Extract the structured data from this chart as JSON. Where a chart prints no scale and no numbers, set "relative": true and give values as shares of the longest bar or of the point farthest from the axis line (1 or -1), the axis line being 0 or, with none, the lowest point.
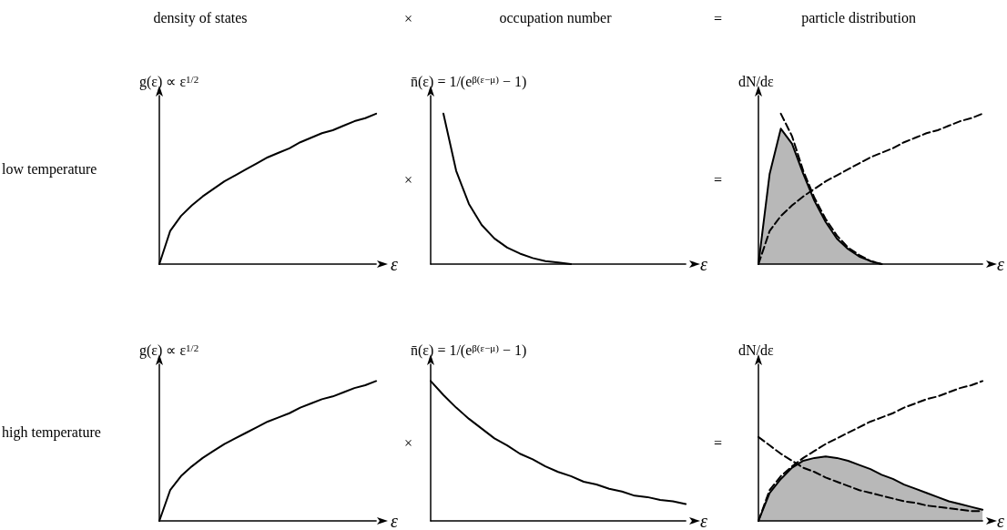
{
  "chart_data": [
    {
      "type": "line",
      "title": "density of states",
      "ylabel": "g(ε) ∝ ε$^{1/2}$",
      "xlabel": "ε",
      "annotations": [
        "low temperature"
      ],
      "relative": true,
      "marker": "none",
      "categories": [
        null,
        null,
        null,
        null,
        null,
        null,
        null,
        null,
        null,
        null,
        null,
        null,
        null,
        null,
        null,
        null,
        null,
        null,
        null,
        null,
        null
      ],
      "series": [
        {
          "color": "#000000",
          "values": [
            0,
            0.22,
            0.32,
            0.39,
            0.45,
            0.5,
            0.55,
            0.59,
            0.63,
            0.67,
            0.71,
            0.74,
            0.77,
            0.81,
            0.84,
            0.87,
            0.89,
            0.92,
            0.95,
            0.97,
            1
          ]
        }
      ]
    },
    {
      "type": "line",
      "title": "occupation number",
      "ylabel": "n̄(ε) = 1/(e$^{β(ε−μ)}$ − 1)",
      "xlabel": "ε",
      "annotations": [
        "×",
        "×"
      ],
      "relative": true,
      "marker": "none",
      "categories": [
        null,
        null,
        null,
        null,
        null,
        null,
        null,
        null,
        null,
        null,
        null,
        null,
        null,
        null,
        null,
        null,
        null,
        null,
        null,
        null,
        null
      ],
      "series": [
        {
          "color": "#000000",
          "values": [
            null,
            1,
            0.62,
            0.4,
            0.26,
            0.17,
            0.11,
            0.07,
            0.04,
            0.02,
            0.01,
            0,
            null,
            null,
            null,
            null,
            null,
            null,
            null,
            null,
            null
          ]
        }
      ]
    },
    {
      "type": "line",
      "title": "particle distribution",
      "ylabel": "dN/dε",
      "xlabel": "ε",
      "annotations": [
        "=",
        "="
      ],
      "relative": true,
      "marker": "none",
      "categories": [
        null,
        null,
        null,
        null,
        null,
        null,
        null,
        null,
        null,
        null,
        null,
        null,
        null,
        null,
        null,
        null,
        null,
        null,
        null,
        null,
        null
      ],
      "series": [
        {
          "type": "area",
          "color": "#000000",
          "line_style": "solid",
          "values": [
            0,
            0.6,
            0.9,
            0.8,
            0.6,
            0.42,
            0.28,
            0.17,
            0.1,
            0.05,
            0.02,
            0,
            null,
            null,
            null,
            null,
            null,
            null,
            null,
            null,
            null
          ]
        },
        {
          "color": "#000000",
          "line_style": "dashed",
          "values": [
            0,
            0.22,
            0.32,
            0.39,
            0.45,
            0.5,
            0.55,
            0.59,
            0.63,
            0.67,
            0.71,
            0.74,
            0.77,
            0.81,
            0.84,
            0.87,
            0.89,
            0.92,
            0.95,
            0.97,
            1
          ]
        },
        {
          "color": "#000000",
          "line_style": "dashed",
          "values": [
            null,
            null,
            1,
            0.85,
            0.62,
            0.44,
            0.3,
            0.19,
            0.11,
            0.06,
            0.02,
            0,
            null,
            null,
            null,
            null,
            null,
            null,
            null,
            null,
            null
          ]
        }
      ]
    },
    {
      "type": "line",
      "ylabel": "g(ε) ∝ ε$^{1/2}$",
      "xlabel": "ε",
      "annotations": [
        "high temperature"
      ],
      "relative": true,
      "marker": "none",
      "categories": [
        null,
        null,
        null,
        null,
        null,
        null,
        null,
        null,
        null,
        null,
        null,
        null,
        null,
        null,
        null,
        null,
        null,
        null,
        null,
        null,
        null
      ],
      "series": [
        {
          "color": "#000000",
          "values": [
            0,
            0.22,
            0.32,
            0.39,
            0.45,
            0.5,
            0.55,
            0.59,
            0.63,
            0.67,
            0.71,
            0.74,
            0.77,
            0.81,
            0.84,
            0.87,
            0.89,
            0.92,
            0.95,
            0.97,
            1
          ]
        }
      ]
    },
    {
      "type": "line",
      "ylabel": "n̄(ε) = 1/(e$^{β(ε−μ)}$ − 1)",
      "xlabel": "ε",
      "annotations": [
        "×"
      ],
      "relative": true,
      "marker": "none",
      "categories": [
        null,
        null,
        null,
        null,
        null,
        null,
        null,
        null,
        null,
        null,
        null,
        null,
        null,
        null,
        null,
        null,
        null,
        null,
        null,
        null,
        null
      ],
      "series": [
        {
          "color": "#000000",
          "values": [
            1,
            0.9,
            0.81,
            0.73,
            0.66,
            0.59,
            0.54,
            0.48,
            0.44,
            0.39,
            0.35,
            0.32,
            0.28,
            0.26,
            0.23,
            0.21,
            0.18,
            0.17,
            0.15,
            0.14,
            0.12
          ]
        }
      ]
    },
    {
      "type": "line",
      "ylabel": "dN/dε",
      "xlabel": "ε",
      "annotations": [
        "="
      ],
      "relative": true,
      "marker": "none",
      "categories": [
        null,
        null,
        null,
        null,
        null,
        null,
        null,
        null,
        null,
        null,
        null,
        null,
        null,
        null,
        null,
        null,
        null,
        null,
        null,
        null,
        null
      ],
      "series": [
        {
          "type": "area",
          "color": "#000000",
          "line_style": "solid",
          "values": [
            0,
            0.2,
            0.3,
            0.38,
            0.43,
            0.45,
            0.46,
            0.45,
            0.43,
            0.4,
            0.37,
            0.33,
            0.3,
            0.26,
            0.23,
            0.2,
            0.17,
            0.14,
            0.12,
            0.1,
            0.08
          ]
        },
        {
          "color": "#000000",
          "line_style": "dashed",
          "values": [
            0,
            0.22,
            0.32,
            0.39,
            0.45,
            0.5,
            0.55,
            0.59,
            0.63,
            0.67,
            0.71,
            0.74,
            0.77,
            0.81,
            0.84,
            0.87,
            0.89,
            0.92,
            0.95,
            0.97,
            1
          ]
        },
        {
          "color": "#000000",
          "line_style": "dashed",
          "values": [
            0.6,
            0.54,
            0.48,
            0.43,
            0.38,
            0.35,
            0.31,
            0.28,
            0.25,
            0.22,
            0.2,
            0.18,
            0.16,
            0.14,
            0.13,
            0.11,
            0.1,
            0.09,
            0.08,
            0.07,
            0.07
          ]
        }
      ]
    }
  ]
}
